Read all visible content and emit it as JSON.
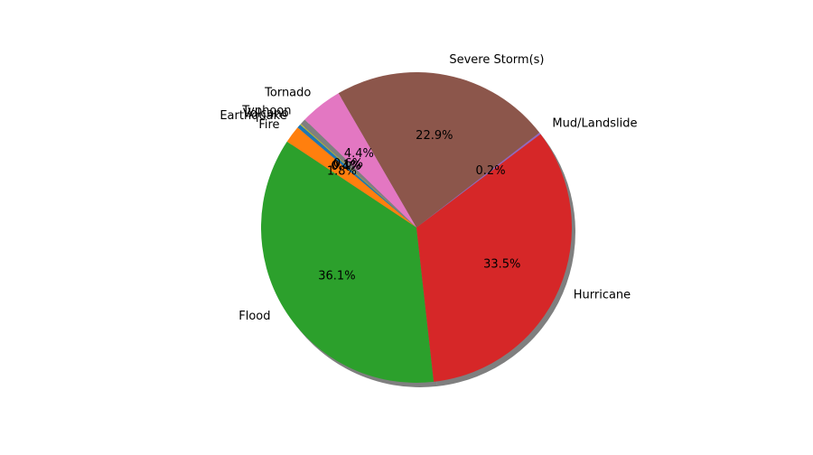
{
  "chart_data": {
    "type": "pie",
    "title": "",
    "shadow": true,
    "start_angle_deg": 138.5,
    "direction": "counterclockwise",
    "legend": "none",
    "slices": [
      {
        "label": "Earthquake",
        "value": 0.4,
        "pct_label": "0.4%",
        "color": "#1f77b4"
      },
      {
        "label": "Fire",
        "value": 1.8,
        "pct_label": "1.8%",
        "color": "#ff7f0e"
      },
      {
        "label": "Flood",
        "value": 36.1,
        "pct_label": "36.1%",
        "color": "#2ca02c"
      },
      {
        "label": "Hurricane",
        "value": 33.5,
        "pct_label": "33.5%",
        "color": "#d62728"
      },
      {
        "label": "Mud/Landslide",
        "value": 0.2,
        "pct_label": "0.2%",
        "color": "#9467bd"
      },
      {
        "label": "Severe Storm(s)",
        "value": 22.9,
        "pct_label": "22.9%",
        "color": "#8c564b"
      },
      {
        "label": "Tornado",
        "value": 4.4,
        "pct_label": "4.4%",
        "color": "#e377c2"
      },
      {
        "label": "Typhoon",
        "value": 0.6,
        "pct_label": "0.6%",
        "color": "#7f7f7f"
      },
      {
        "label": "Volcano",
        "value": 0.1,
        "pct_label": "0.1%",
        "color": "#bcbd22"
      }
    ]
  }
}
